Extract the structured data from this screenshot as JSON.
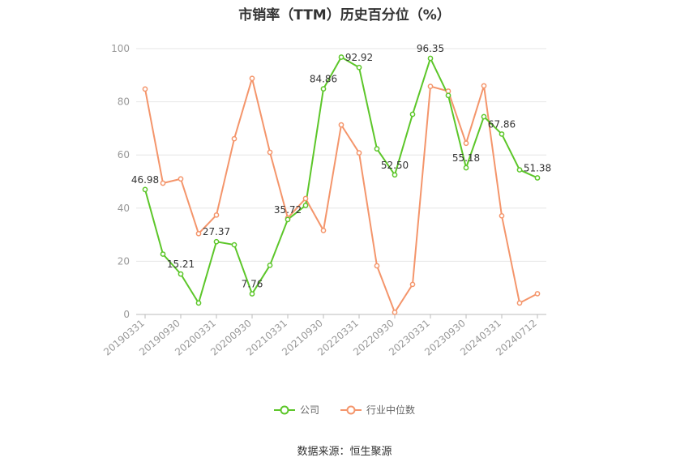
{
  "chart_data": {
    "type": "line",
    "title": "市销率（TTM）历史百分位（%）",
    "x": [
      "20190331",
      "20190630",
      "20190930",
      "20191231",
      "20200331",
      "20200630",
      "20200930",
      "20201231",
      "20210331",
      "20210630",
      "20210930",
      "20211231",
      "20220331",
      "20220630",
      "20220930",
      "20221231",
      "20230331",
      "20230630",
      "20230930",
      "20231231",
      "20240331",
      "20240630",
      "20240712"
    ],
    "x_tick_labels": [
      "20190331",
      "20190930",
      "20200331",
      "20200930",
      "20210331",
      "20210930",
      "20220331",
      "20220930",
      "20230331",
      "20230930",
      "20240331",
      "20240712"
    ],
    "ylim": [
      0,
      100
    ],
    "y_ticks": [
      0,
      20,
      40,
      60,
      80,
      100
    ],
    "grid": true,
    "legend_position": "bottom",
    "series": [
      {
        "name": "公司",
        "color": "#5cc629",
        "values": [
          46.98,
          22.7,
          15.21,
          4.3,
          27.37,
          26.2,
          7.76,
          18.5,
          35.72,
          41.0,
          84.86,
          96.8,
          92.92,
          62.3,
          52.5,
          75.3,
          96.35,
          82.4,
          55.18,
          74.4,
          67.86,
          54.4,
          51.38
        ],
        "labels": {
          "0": "46.98",
          "2": "15.21",
          "4": "27.37",
          "6": "7.76",
          "8": "35.72",
          "10": "84.86",
          "12": "92.92",
          "14": "52.50",
          "16": "96.35",
          "18": "55.18",
          "20": "67.86",
          "22": "51.38"
        }
      },
      {
        "name": "行业中位数",
        "color": "#f4956b",
        "values": [
          84.8,
          49.4,
          51.0,
          30.4,
          37.4,
          66.1,
          88.8,
          61.0,
          36.3,
          43.6,
          31.6,
          71.3,
          60.8,
          18.3,
          0.8,
          11.3,
          85.8,
          84.0,
          64.4,
          86.0,
          37.1,
          4.3,
          7.8
        ]
      }
    ]
  },
  "legend": {
    "company": "公司",
    "industry": "行业中位数"
  },
  "source": "数据来源：恒生聚源"
}
